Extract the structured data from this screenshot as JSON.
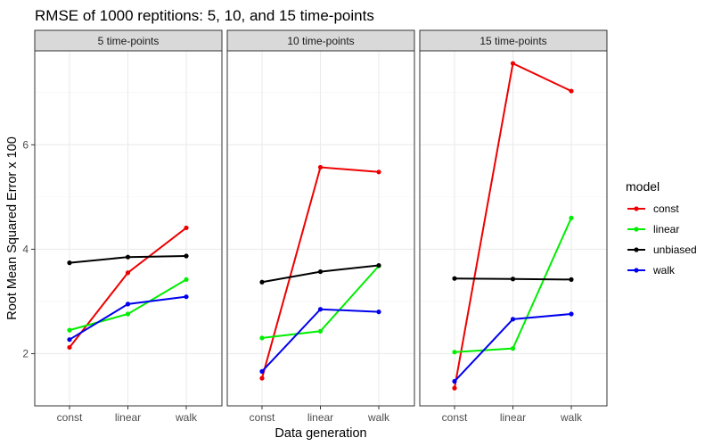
{
  "chart_data": {
    "type": "line",
    "title": "RMSE of 1000 reptitions: 5, 10, and 15 time-points",
    "xlabel": "Data generation",
    "ylabel": "Root Mean Squared Error x 100",
    "categories": [
      "const",
      "linear",
      "walk"
    ],
    "ylim": [
      1.0,
      7.8
    ],
    "yticks": [
      2,
      4,
      6
    ],
    "grid": true,
    "legend": {
      "title": "model",
      "position": "right"
    },
    "colors": {
      "const": "#ee0000",
      "linear": "#00ee00",
      "unbiased": "#000000",
      "walk": "#0000ee"
    },
    "panels": [
      {
        "label": "5 time-points",
        "series": [
          {
            "name": "const",
            "values": [
              2.12,
              3.55,
              4.41
            ]
          },
          {
            "name": "linear",
            "values": [
              2.45,
              2.76,
              3.42
            ]
          },
          {
            "name": "unbiased",
            "values": [
              3.74,
              3.85,
              3.87
            ]
          },
          {
            "name": "walk",
            "values": [
              2.27,
              2.95,
              3.09
            ]
          }
        ]
      },
      {
        "label": "10 time-points",
        "series": [
          {
            "name": "const",
            "values": [
              1.53,
              5.57,
              5.48
            ]
          },
          {
            "name": "linear",
            "values": [
              2.3,
              2.43,
              3.68
            ]
          },
          {
            "name": "unbiased",
            "values": [
              3.37,
              3.57,
              3.69
            ]
          },
          {
            "name": "walk",
            "values": [
              1.66,
              2.85,
              2.8
            ]
          }
        ]
      },
      {
        "label": "15 time-points",
        "series": [
          {
            "name": "const",
            "values": [
              1.34,
              7.56,
              7.03
            ]
          },
          {
            "name": "linear",
            "values": [
              2.03,
              2.1,
              4.6
            ]
          },
          {
            "name": "unbiased",
            "values": [
              3.44,
              3.43,
              3.42
            ]
          },
          {
            "name": "walk",
            "values": [
              1.47,
              2.66,
              2.76
            ]
          }
        ]
      }
    ]
  }
}
